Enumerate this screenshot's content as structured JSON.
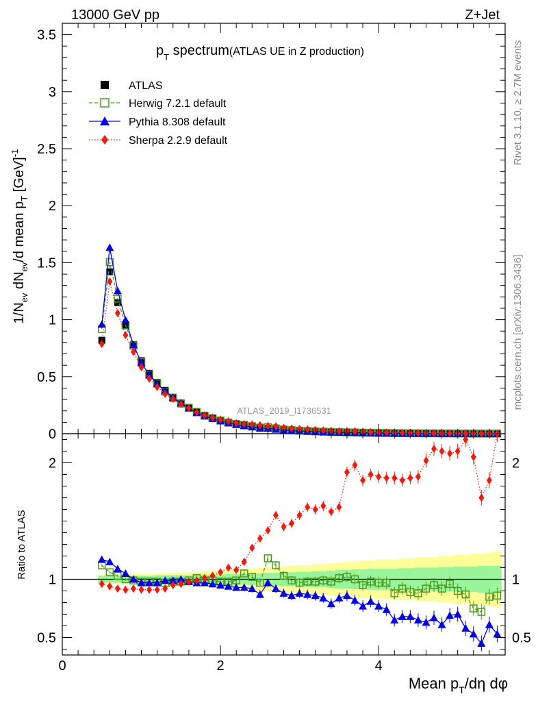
{
  "header": {
    "left": "13000 GeV pp",
    "right": "Z+Jet"
  },
  "side_labels": {
    "rivet": "Rivet 3.1.10, ≥ 2.7M events",
    "mcplots": "mcplots.cern.ch [arXiv:1306.3436]"
  },
  "chart_data": {
    "type": "scatter",
    "title": "p_T spectrum",
    "title_parts": {
      "main": "p",
      "sub": "T",
      "rest": " spectrum",
      "paren": "(ATLAS UE in Z production)"
    },
    "analysis_id": "ATLAS_2019_I1736531",
    "xlabel": "Mean p_T/dη dφ",
    "ylabel_main": "1/N_ev dN_ev/d mean p_T [GeV]^-1",
    "ylabel_ratio": "Ratio to ATLAS",
    "xlim": [
      0,
      5.6
    ],
    "ylim_main": [
      0,
      3.6
    ],
    "ylim_ratio": [
      0.35,
      2.3
    ],
    "x_ticks": [
      "0",
      "2",
      "4"
    ],
    "y_ticks_main": [
      "0",
      "0.5",
      "1",
      "1.5",
      "2",
      "2.5",
      "3",
      "3.5"
    ],
    "y_ticks_ratio": [
      "0.5",
      "1",
      "2"
    ],
    "legend_position": "top-left",
    "grid": false,
    "x": [
      0.5,
      0.6,
      0.7,
      0.8,
      0.9,
      1.0,
      1.1,
      1.2,
      1.3,
      1.4,
      1.5,
      1.6,
      1.7,
      1.8,
      1.9,
      2.0,
      2.1,
      2.2,
      2.3,
      2.4,
      2.5,
      2.6,
      2.7,
      2.8,
      2.9,
      3.0,
      3.1,
      3.2,
      3.3,
      3.4,
      3.5,
      3.6,
      3.7,
      3.8,
      3.9,
      4.0,
      4.1,
      4.2,
      4.3,
      4.4,
      4.5,
      4.6,
      4.7,
      4.8,
      4.9,
      5.0,
      5.1,
      5.2,
      5.3,
      5.4,
      5.5
    ],
    "atlas_values": [
      0.82,
      1.42,
      1.15,
      0.95,
      0.78,
      0.64,
      0.53,
      0.45,
      0.38,
      0.32,
      0.27,
      0.23,
      0.19,
      0.16,
      0.138,
      0.118,
      0.1,
      0.086,
      0.074,
      0.064,
      0.055,
      0.048,
      0.042,
      0.036,
      0.031,
      0.027,
      0.024,
      0.021,
      0.018,
      0.016,
      0.014,
      0.012,
      0.011,
      0.0095,
      0.0083,
      0.0073,
      0.0064,
      0.0056,
      0.0049,
      0.0043,
      0.0038,
      0.0033,
      0.0029,
      0.0026,
      0.0023,
      0.002,
      0.0018,
      0.0016,
      0.0014,
      0.0012,
      0.0011
    ],
    "ratio_band": {
      "inner_half_width": [
        0.03,
        0.03,
        0.03,
        0.03,
        0.03,
        0.03,
        0.03,
        0.035,
        0.035,
        0.035,
        0.035,
        0.035,
        0.04,
        0.04,
        0.04,
        0.04,
        0.045,
        0.045,
        0.045,
        0.05,
        0.05,
        0.055,
        0.055,
        0.06,
        0.06,
        0.065,
        0.065,
        0.07,
        0.07,
        0.075,
        0.08,
        0.08,
        0.085,
        0.085,
        0.09,
        0.09,
        0.09,
        0.09,
        0.095,
        0.095,
        0.1,
        0.1,
        0.1,
        0.105,
        0.105,
        0.11,
        0.11,
        0.11,
        0.115,
        0.115,
        0.115
      ],
      "outer_half_width": [
        0.04,
        0.04,
        0.04,
        0.04,
        0.045,
        0.045,
        0.05,
        0.05,
        0.055,
        0.055,
        0.06,
        0.06,
        0.065,
        0.07,
        0.07,
        0.075,
        0.08,
        0.085,
        0.09,
        0.09,
        0.1,
        0.1,
        0.11,
        0.11,
        0.12,
        0.12,
        0.12,
        0.13,
        0.13,
        0.14,
        0.14,
        0.15,
        0.15,
        0.16,
        0.16,
        0.17,
        0.17,
        0.17,
        0.18,
        0.18,
        0.19,
        0.19,
        0.19,
        0.2,
        0.2,
        0.21,
        0.21,
        0.22,
        0.22,
        0.23,
        0.24
      ]
    },
    "series": [
      {
        "name": "ATLAS",
        "color": "#000000",
        "marker": "filled-square",
        "line": "none",
        "ratio": [
          1,
          1,
          1,
          1,
          1,
          1,
          1,
          1,
          1,
          1,
          1,
          1,
          1,
          1,
          1,
          1,
          1,
          1,
          1,
          1,
          1,
          1,
          1,
          1,
          1,
          1,
          1,
          1,
          1,
          1,
          1,
          1,
          1,
          1,
          1,
          1,
          1,
          1,
          1,
          1,
          1,
          1,
          1,
          1,
          1,
          1,
          1,
          1,
          1,
          1,
          1
        ]
      },
      {
        "name": "Herwig 7.2.1 default",
        "color": "#4a9a1e",
        "marker": "open-square",
        "line": "dashed",
        "ratio": [
          1.12,
          1.06,
          1.03,
          1.0,
          0.99,
          0.98,
          0.98,
          0.98,
          0.97,
          0.98,
          0.98,
          0.99,
          1.01,
          0.99,
          0.99,
          0.98,
          0.98,
          0.99,
          1.05,
          1.02,
          0.97,
          1.18,
          1.12,
          1.03,
          0.99,
          0.97,
          0.98,
          0.98,
          0.99,
          0.98,
          1.01,
          1.02,
          1.0,
          0.95,
          0.98,
          0.97,
          0.97,
          0.88,
          0.92,
          0.89,
          0.88,
          0.92,
          0.95,
          0.92,
          0.96,
          0.9,
          0.87,
          0.75,
          0.72,
          0.85,
          0.86
        ]
      },
      {
        "name": "Pythia 8.308 default",
        "color": "#0000e0",
        "marker": "filled-triangle",
        "line": "solid",
        "ratio": [
          1.17,
          1.15,
          1.09,
          1.05,
          1.0,
          0.97,
          0.97,
          0.97,
          0.99,
          0.99,
          1.0,
          0.98,
          0.97,
          0.97,
          0.96,
          0.95,
          0.94,
          0.93,
          0.93,
          0.92,
          0.87,
          0.97,
          0.92,
          0.88,
          0.86,
          0.88,
          0.87,
          0.86,
          0.84,
          0.79,
          0.84,
          0.86,
          0.82,
          0.77,
          0.81,
          0.77,
          0.74,
          0.65,
          0.68,
          0.68,
          0.65,
          0.63,
          0.67,
          0.61,
          0.69,
          0.7,
          0.58,
          0.53,
          0.45,
          0.61,
          0.53
        ]
      },
      {
        "name": "Sherpa 2.2.9 default",
        "color": "#ee1c0e",
        "marker": "filled-diamond",
        "line": "dotted",
        "ratio": [
          0.96,
          0.94,
          0.92,
          0.91,
          0.92,
          0.91,
          0.91,
          0.91,
          0.92,
          0.95,
          0.96,
          0.98,
          0.99,
          1.01,
          1.03,
          1.06,
          1.1,
          1.08,
          1.15,
          1.27,
          1.35,
          1.42,
          1.55,
          1.45,
          1.48,
          1.55,
          1.62,
          1.6,
          1.63,
          1.58,
          1.62,
          1.92,
          1.98,
          1.85,
          1.9,
          1.88,
          1.87,
          1.87,
          1.85,
          1.87,
          1.88,
          2.02,
          2.12,
          2.1,
          2.08,
          2.1,
          2.2,
          2.05,
          1.7,
          1.85,
          2.25
        ]
      }
    ]
  }
}
